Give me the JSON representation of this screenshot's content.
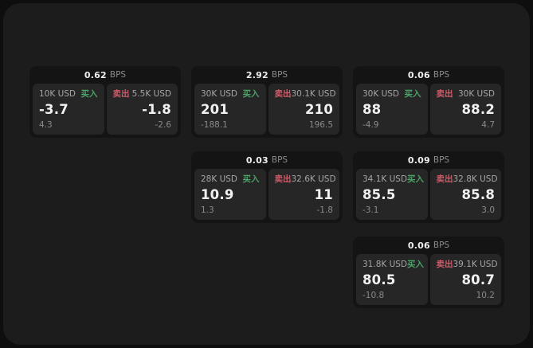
{
  "labels": {
    "bps_unit": "BPS",
    "buy": "买入",
    "sell": "卖出"
  },
  "colors": {
    "buy_green": "#4ba267",
    "sell_red": "#cf5a68",
    "panel_bg": "#262627",
    "card_bg": "#141415",
    "surface_bg": "#1c1c1d",
    "page_bg": "#0e0e0f"
  },
  "cards": [
    {
      "bps": "0.62",
      "buy": {
        "size": "10K USD",
        "price": "-3.7",
        "delta": "4.3"
      },
      "sell": {
        "size": "5.5K USD",
        "price": "-1.8",
        "delta": "-2.6"
      }
    },
    {
      "bps": "2.92",
      "buy": {
        "size": "30K USD",
        "price": "201",
        "delta": "-188.1"
      },
      "sell": {
        "size": "30.1K USD",
        "price": "210",
        "delta": "196.5"
      }
    },
    {
      "bps": "0.06",
      "buy": {
        "size": "30K USD",
        "price": "88",
        "delta": "-4.9"
      },
      "sell": {
        "size": "30K USD",
        "price": "88.2",
        "delta": "4.7"
      }
    },
    {
      "bps": "0.03",
      "buy": {
        "size": "28K USD",
        "price": "10.9",
        "delta": "1.3"
      },
      "sell": {
        "size": "32.6K USD",
        "price": "11",
        "delta": "-1.8"
      }
    },
    {
      "bps": "0.09",
      "buy": {
        "size": "34.1K USD",
        "price": "85.5",
        "delta": "-3.1"
      },
      "sell": {
        "size": "32.8K USD",
        "price": "85.8",
        "delta": "3.0"
      }
    },
    {
      "bps": "0.06",
      "buy": {
        "size": "31.8K USD",
        "price": "80.5",
        "delta": "-10.8"
      },
      "sell": {
        "size": "39.1K USD",
        "price": "80.7",
        "delta": "10.2"
      }
    }
  ]
}
